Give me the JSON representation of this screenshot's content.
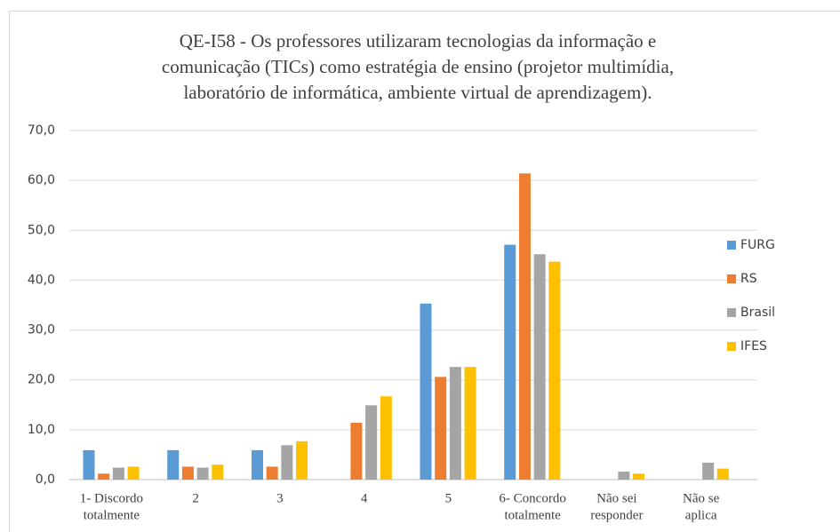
{
  "chart_data": {
    "type": "bar",
    "title": [
      "QE-I58 - Os professores utilizaram tecnologias da informação e",
      "comunicação (TICs) como estratégia de ensino (projetor multimídia,",
      "laboratório de informática, ambiente virtual de aprendizagem)."
    ],
    "categories": [
      [
        "1- Discordo",
        "totalmente"
      ],
      [
        "2"
      ],
      [
        "3"
      ],
      [
        "4"
      ],
      [
        "5"
      ],
      [
        "6- Concordo",
        "totalmente"
      ],
      [
        "Não sei",
        "responder"
      ],
      [
        "Não se",
        "aplica"
      ]
    ],
    "series": [
      {
        "name": "FURG",
        "color": "#5b9bd5",
        "values": [
          5.9,
          5.9,
          5.9,
          0,
          35.3,
          47.1,
          0,
          0
        ]
      },
      {
        "name": "RS",
        "color": "#ed7d31",
        "values": [
          1.2,
          2.6,
          2.6,
          11.4,
          20.6,
          61.4,
          0,
          0
        ]
      },
      {
        "name": "Brasil",
        "color": "#a5a5a5",
        "values": [
          2.4,
          2.4,
          6.9,
          14.9,
          22.6,
          45.2,
          1.6,
          3.4
        ]
      },
      {
        "name": "IFES",
        "color": "#ffc000",
        "values": [
          2.6,
          3.0,
          7.7,
          16.7,
          22.6,
          43.7,
          1.2,
          2.2
        ]
      }
    ],
    "ylim": [
      0,
      70
    ],
    "yticks": [
      {
        "value": 0,
        "label": "0,0"
      },
      {
        "value": 10,
        "label": "10,0"
      },
      {
        "value": 20,
        "label": "20,0"
      },
      {
        "value": 30,
        "label": "30,0"
      },
      {
        "value": 40,
        "label": "40,0"
      },
      {
        "value": 50,
        "label": "50,0"
      },
      {
        "value": 60,
        "label": "60,0"
      },
      {
        "value": 70,
        "label": "70,0"
      }
    ],
    "grid": true,
    "legend": "right"
  }
}
